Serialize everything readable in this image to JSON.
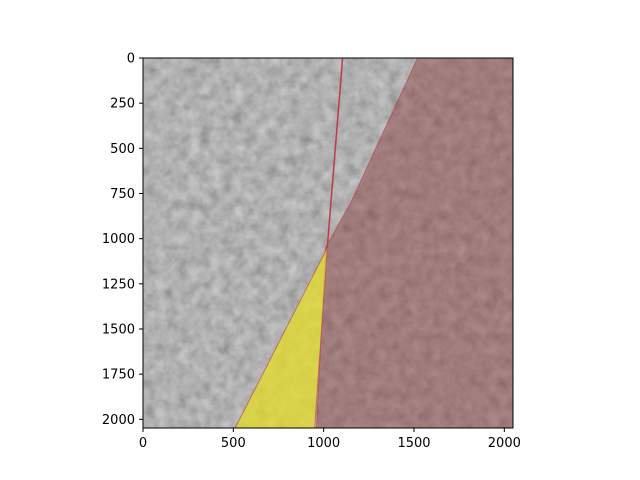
{
  "chart_data": {
    "type": "image-overlay",
    "x_ticks": [
      {
        "value": 0,
        "label": "0"
      },
      {
        "value": 500,
        "label": "500"
      },
      {
        "value": 1000,
        "label": "1000"
      },
      {
        "value": 1500,
        "label": "1500"
      },
      {
        "value": 2000,
        "label": "2000"
      }
    ],
    "y_ticks": [
      {
        "value": 0,
        "label": "0"
      },
      {
        "value": 250,
        "label": "250"
      },
      {
        "value": 500,
        "label": "500"
      },
      {
        "value": 750,
        "label": "750"
      },
      {
        "value": 1000,
        "label": "1000"
      },
      {
        "value": 1250,
        "label": "1250"
      },
      {
        "value": 1500,
        "label": "1500"
      },
      {
        "value": 1750,
        "label": "1750"
      },
      {
        "value": 2000,
        "label": "2000"
      }
    ],
    "xlim": [
      0,
      2048
    ],
    "ylim": [
      2048,
      0
    ],
    "y_inverted": true,
    "grid": false,
    "background_image": "grayscale tissue texture",
    "regions": [
      {
        "name": "red region",
        "color": "#8b3c3c",
        "opacity": 0.45,
        "polygon": [
          [
            1520,
            0
          ],
          [
            2048,
            0
          ],
          [
            2048,
            2048
          ],
          [
            960,
            2048
          ],
          [
            1010,
            1050
          ],
          [
            1150,
            800
          ]
        ]
      },
      {
        "name": "yellow region",
        "color": "#e6dc28",
        "opacity": 0.75,
        "polygon": [
          [
            1020,
            1050
          ],
          [
            950,
            2048
          ],
          [
            510,
            2048
          ]
        ]
      }
    ],
    "lines": [
      {
        "name": "red line",
        "color": "#c0394b",
        "points": [
          [
            1105,
            0
          ],
          [
            1020,
            1050
          ]
        ]
      }
    ]
  }
}
